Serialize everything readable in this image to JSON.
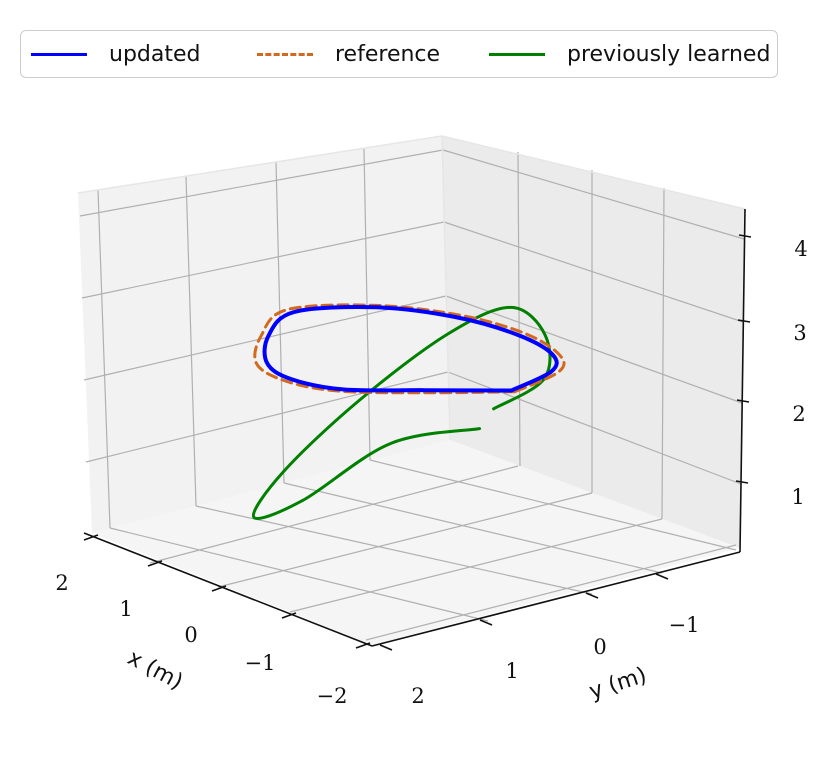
{
  "chart_data": {
    "type": "line3d",
    "title": "",
    "xlabel": "x (m)",
    "ylabel": "y (m)",
    "zlabel": "",
    "xlim": [
      -2.3,
      2.3
    ],
    "ylim": [
      -2.3,
      2.3
    ],
    "zlim": [
      0.3,
      4.3
    ],
    "grid": true,
    "legend": {
      "position": "top",
      "ncol": 3
    },
    "ticks": {
      "x": [
        {
          "value": 2,
          "label": "2"
        },
        {
          "value": 1,
          "label": "1"
        },
        {
          "value": 0,
          "label": "0"
        },
        {
          "value": -1,
          "label": "−1"
        },
        {
          "value": -2,
          "label": "−2"
        }
      ],
      "y": [
        {
          "value": 2,
          "label": "2"
        },
        {
          "value": 1,
          "label": "1"
        },
        {
          "value": 0,
          "label": "0"
        },
        {
          "value": -1,
          "label": "−1"
        }
      ],
      "z": [
        {
          "value": 1,
          "label": "1"
        },
        {
          "value": 2,
          "label": "2"
        },
        {
          "value": 3,
          "label": "3"
        },
        {
          "value": 4,
          "label": "4"
        }
      ]
    },
    "series": [
      {
        "name": "updated",
        "color": "#0000ff",
        "style": "solid",
        "description_points": "figure-eight trajectory",
        "points": [
          [
            -1.55,
            0.1,
            3.05
          ],
          [
            -1.1,
            0.85,
            3.05
          ],
          [
            -0.55,
            1.45,
            3.0
          ],
          [
            0.0,
            1.65,
            3.0
          ],
          [
            0.55,
            1.45,
            3.0
          ],
          [
            1.15,
            0.85,
            3.05
          ],
          [
            1.55,
            0.1,
            3.1
          ],
          [
            1.25,
            -0.75,
            3.1
          ],
          [
            0.7,
            -1.3,
            3.05
          ],
          [
            0.0,
            -1.5,
            3.0
          ],
          [
            -0.7,
            -1.3,
            3.0
          ],
          [
            -1.25,
            -0.75,
            3.05
          ],
          [
            -1.55,
            0.1,
            3.05
          ]
        ]
      },
      {
        "name": "reference",
        "color": "#d2691e",
        "style": "dashed",
        "points": [
          [
            -1.6,
            0.1,
            3.05
          ],
          [
            -1.15,
            0.95,
            3.05
          ],
          [
            -0.55,
            1.55,
            3.0
          ],
          [
            0.0,
            1.75,
            3.0
          ],
          [
            0.6,
            1.55,
            3.0
          ],
          [
            1.2,
            0.9,
            3.05
          ],
          [
            1.65,
            0.1,
            3.1
          ],
          [
            1.3,
            -0.8,
            3.1
          ],
          [
            0.7,
            -1.4,
            3.05
          ],
          [
            0.0,
            -1.6,
            3.0
          ],
          [
            -0.75,
            -1.35,
            3.0
          ],
          [
            -1.3,
            -0.8,
            3.05
          ],
          [
            -1.6,
            0.1,
            3.05
          ]
        ]
      },
      {
        "name": "previously learned",
        "color": "#008000",
        "style": "solid",
        "points": [
          [
            -1.2,
            0.2,
            2.5
          ],
          [
            -0.7,
            0.95,
            2.3
          ],
          [
            0.2,
            1.3,
            1.4
          ],
          [
            1.1,
            1.1,
            0.9
          ],
          [
            1.5,
            0.3,
            1.2
          ],
          [
            1.25,
            -0.5,
            2.0
          ],
          [
            0.6,
            -1.1,
            2.9
          ],
          [
            -0.1,
            -1.3,
            3.4
          ],
          [
            -0.8,
            -1.1,
            3.3
          ],
          [
            -1.3,
            -0.6,
            3.0
          ],
          [
            -1.4,
            0.2,
            2.8
          ]
        ]
      }
    ]
  }
}
